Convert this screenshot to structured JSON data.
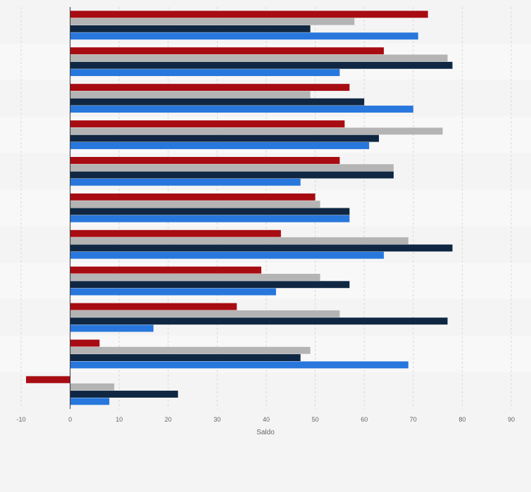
{
  "chart_data": {
    "type": "bar",
    "orientation": "horizontal",
    "xlabel": "Saldo",
    "xlim": [
      -10,
      90
    ],
    "xticks": [
      -10,
      0,
      10,
      20,
      30,
      40,
      50,
      60,
      70,
      80,
      90
    ],
    "xtick_labels": [
      "-10",
      "0",
      "10",
      "20",
      "30",
      "40",
      "50",
      "60",
      "70",
      "80",
      "90"
    ],
    "grid": "vertical dashed",
    "legend": "none",
    "categories": [
      "",
      "",
      "",
      "",
      "",
      "",
      "",
      "",
      "",
      "",
      ""
    ],
    "series": [
      {
        "color": "#a70c12",
        "values": [
          73,
          64,
          57,
          56,
          55,
          50,
          43,
          39,
          34,
          6,
          -9
        ]
      },
      {
        "color": "#b4b4b4",
        "values": [
          58,
          77,
          49,
          76,
          66,
          51,
          69,
          51,
          55,
          49,
          9
        ]
      },
      {
        "color": "#0f2742",
        "values": [
          49,
          78,
          60,
          63,
          66,
          57,
          78,
          57,
          77,
          47,
          22
        ]
      },
      {
        "color": "#2877dc",
        "values": [
          71,
          55,
          70,
          61,
          47,
          57,
          64,
          42,
          17,
          69,
          8
        ]
      }
    ]
  }
}
